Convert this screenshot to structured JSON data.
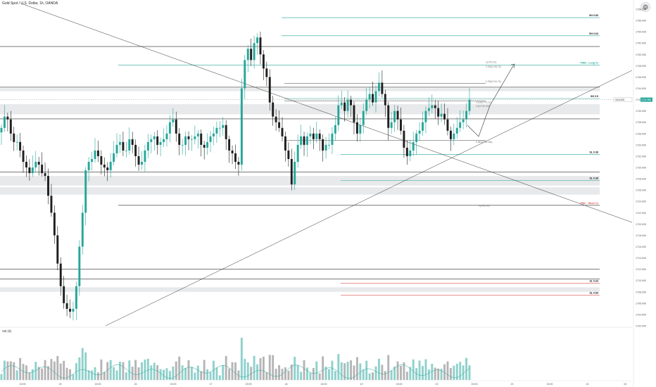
{
  "header": {
    "symbol_title": "Gold Spot / U.S. Dollar, 1h, OANDA"
  },
  "volume": {
    "label": "Vol (3)"
  },
  "colors": {
    "up": "#26a69a",
    "down": "#1f1f1f",
    "vol_up": "#8fd1cc",
    "vol_down": "#b5b5b5",
    "level": "#2a2a2a",
    "green_level": "#26a69a",
    "red_level": "#d9534f"
  },
  "chart_data": {
    "type": "candlestick",
    "ylim": [
      1702,
      1759
    ],
    "y_ticks": [
      "1758.000",
      "1756.000",
      "1754.000",
      "1752.000",
      "1750.000",
      "1748.000",
      "1746.000",
      "1744.000",
      "1742.000",
      "1740.000",
      "1738.000",
      "1736.000",
      "1734.000",
      "1732.000",
      "1730.000",
      "1728.000",
      "1726.000",
      "1724.000",
      "1722.000",
      "1720.000",
      "1718.000",
      "1716.000",
      "1714.000",
      "1712.000",
      "1710.000",
      "1708.000",
      "1706.000",
      "1704.000",
      "1702.000"
    ],
    "x_ticks": [
      "15:00",
      "15",
      "15:00",
      "16",
      "15:00",
      "17",
      "15:00",
      "18",
      "15:00",
      "19",
      "15:00",
      "22",
      "15:00",
      "23",
      "15:00",
      "24",
      "15"
    ],
    "current_price": {
      "label": "XAUUSD",
      "value": "1741.955"
    },
    "closes": [
      1737,
      1739,
      1738.5,
      1736,
      1734.5,
      1734.5,
      1733,
      1731,
      1730,
      1729,
      1730,
      1731,
      1730.5,
      1729,
      1728.5,
      1725,
      1722,
      1718,
      1713,
      1709,
      1706,
      1705,
      1704.5,
      1705,
      1709,
      1716,
      1722,
      1729.5,
      1731,
      1731.5,
      1733,
      1732,
      1730.5,
      1730,
      1729.5,
      1731,
      1732.5,
      1734,
      1734.5,
      1733,
      1733,
      1735,
      1734,
      1732,
      1730.5,
      1731,
      1733,
      1734.5,
      1735,
      1735.5,
      1734,
      1734.5,
      1735,
      1736,
      1738,
      1738.5,
      1736,
      1734,
      1734,
      1735.5,
      1735,
      1735,
      1735.5,
      1736,
      1734,
      1733.5,
      1734.5,
      1735.5,
      1736,
      1737,
      1737,
      1737.5,
      1735,
      1733,
      1732.5,
      1731,
      1730.5,
      1744,
      1749,
      1751,
      1749,
      1752,
      1753,
      1750,
      1747.5,
      1746,
      1741.5,
      1739,
      1738,
      1737,
      1735.5,
      1733,
      1731.5,
      1727,
      1731,
      1734,
      1735.5,
      1734,
      1735.5,
      1736,
      1735,
      1736,
      1735,
      1733,
      1734,
      1734,
      1736,
      1737.5,
      1741,
      1741.5,
      1740,
      1742,
      1741,
      1738,
      1736,
      1737.5,
      1740,
      1742,
      1743,
      1741.5,
      1743.5,
      1745,
      1743,
      1741,
      1737,
      1738,
      1740,
      1738.5,
      1736.5,
      1733.5,
      1732,
      1733,
      1734.5,
      1736,
      1736.5,
      1738,
      1740,
      1740.5,
      1741,
      1740.5,
      1739,
      1739.5,
      1738.5,
      1736.5,
      1735,
      1736,
      1737,
      1738,
      1738.5,
      1740,
      1742
    ]
  },
  "levels": [
    {
      "label": "SH 0.83",
      "value": 1756.5
    },
    {
      "label": "SH 0.63",
      "value": 1753.3
    },
    {
      "label": "",
      "value": 1751.4
    },
    {
      "label": "PWH · Long #1",
      "value": 1748.1
    },
    {
      "label": "",
      "value": 1744.2
    },
    {
      "label": "SH 0.5",
      "value": 1742.2
    },
    {
      "label": "SL 0.38",
      "value": 1732.3
    },
    {
      "label": "SL 0.38",
      "value": 1727.7
    },
    {
      "label": "PWL · Short #1",
      "value": 1723.3
    },
    {
      "label": "SL 0.63",
      "value": 1709.5
    },
    {
      "label": "SL 0.83",
      "value": 1707.4
    }
  ],
  "fib_labels": [
    "0.786(1748.79)",
    "0.786(1744.76)",
    "0.618(1741.12)",
    "0.5(1739.126)",
    "0.382(1733.265)",
    "0(1722.04)",
    "1(1751.91)"
  ]
}
